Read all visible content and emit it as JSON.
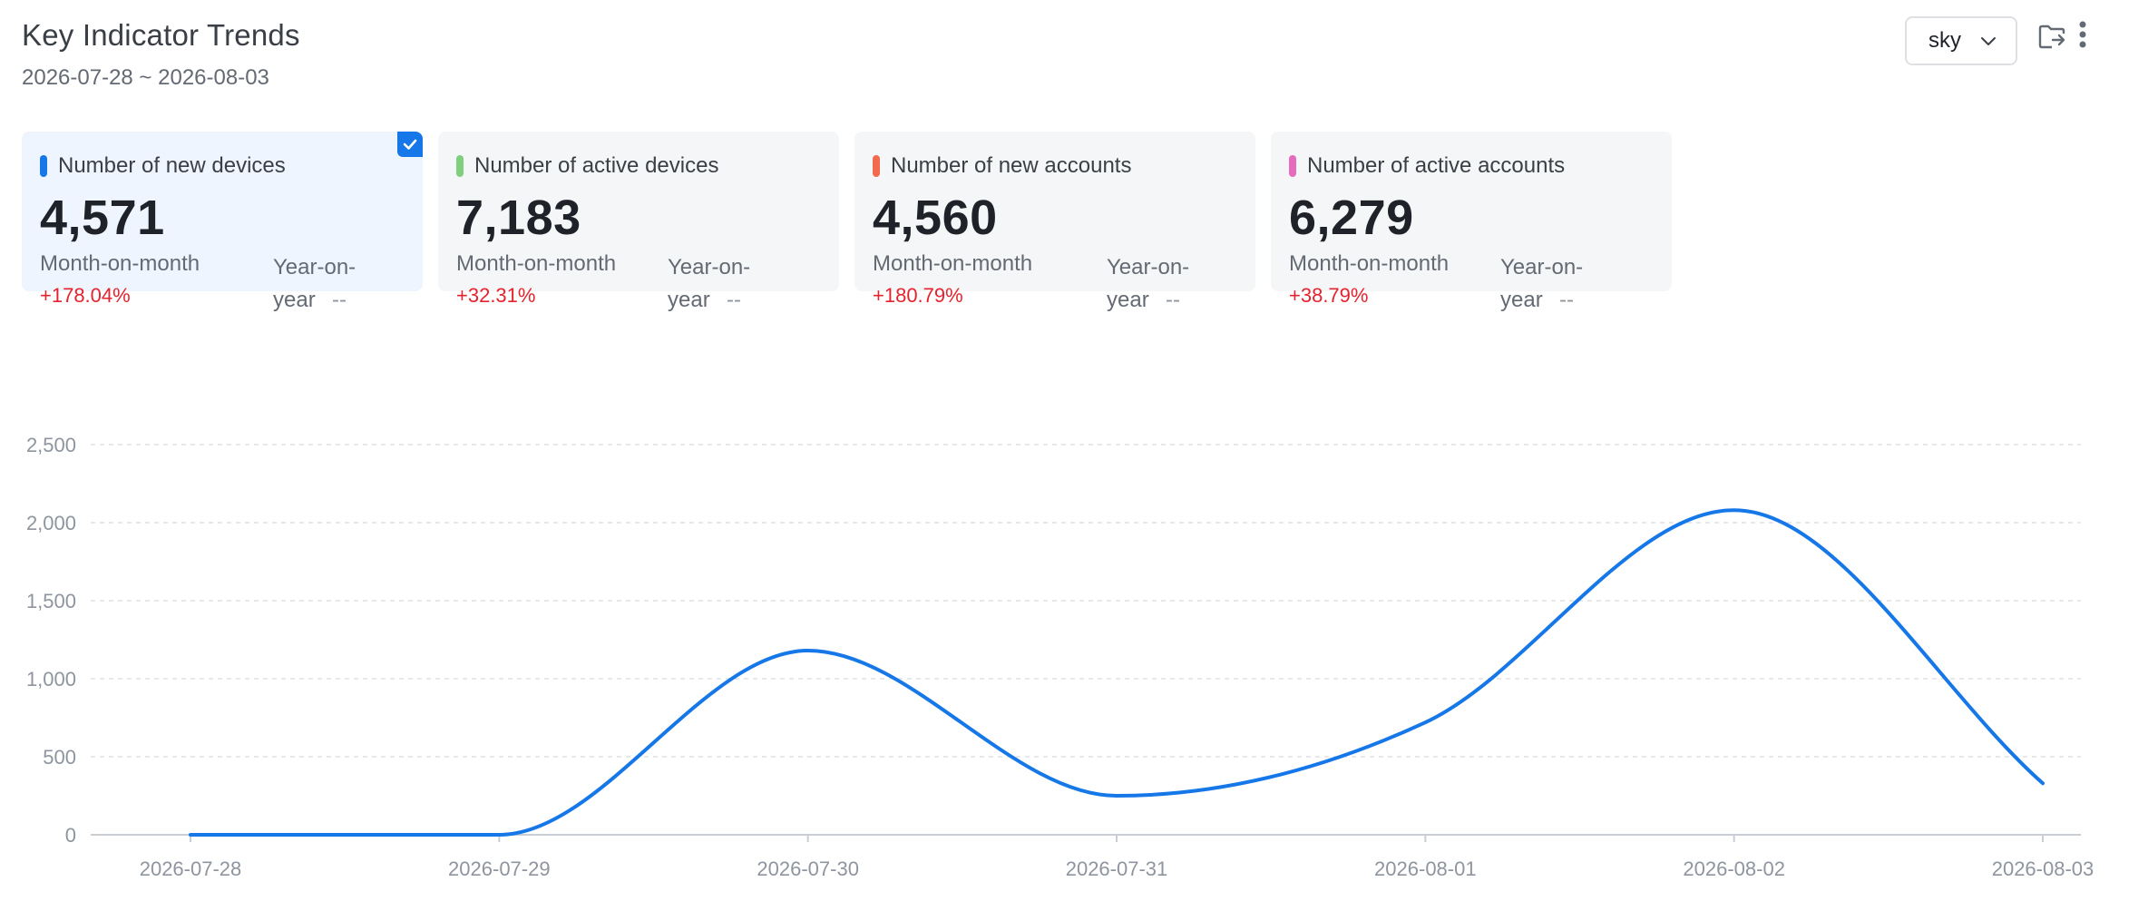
{
  "header": {
    "title": "Key Indicator Trends",
    "date_range": "2026-07-28 ~ 2026-08-03"
  },
  "theme_select": {
    "value": "sky",
    "icon": "chevron-down-icon"
  },
  "toolbar": {
    "export_icon": "folder-export-icon",
    "more_icon": "more-vertical-icon"
  },
  "cards": [
    {
      "label": "Number of new devices",
      "value": "4,571",
      "mom_label": "Month-on-month",
      "mom_value": "+178.04%",
      "yoy_label": "Year-on-year",
      "yoy_value": "--",
      "color": "#1677e8",
      "selected": true
    },
    {
      "label": "Number of active devices",
      "value": "7,183",
      "mom_label": "Month-on-month",
      "mom_value": "+32.31%",
      "yoy_label": "Year-on-year",
      "yoy_value": "--",
      "color": "#7ed07e",
      "selected": false
    },
    {
      "label": "Number of new accounts",
      "value": "4,560",
      "mom_label": "Month-on-month",
      "mom_value": "+180.79%",
      "yoy_label": "Year-on-year",
      "yoy_value": "--",
      "color": "#f26b4e",
      "selected": false
    },
    {
      "label": "Number of active accounts",
      "value": "6,279",
      "mom_label": "Month-on-month",
      "mom_value": "+38.79%",
      "yoy_label": "Year-on-year",
      "yoy_value": "--",
      "color": "#e46bbd",
      "selected": false
    }
  ],
  "chart_data": {
    "type": "line",
    "x": [
      "2026-07-28",
      "2026-07-29",
      "2026-07-30",
      "2026-07-31",
      "2026-08-01",
      "2026-08-02",
      "2026-08-03"
    ],
    "series": [
      {
        "values": [
          0,
          0,
          1180,
          250,
          720,
          2080,
          330
        ],
        "color": "#1677e8"
      }
    ],
    "yticks": [
      "0",
      "500",
      "1,000",
      "1,500",
      "2,000",
      "2,500"
    ],
    "ylim": [
      0,
      2500
    ],
    "grid": true,
    "smooth": true
  }
}
